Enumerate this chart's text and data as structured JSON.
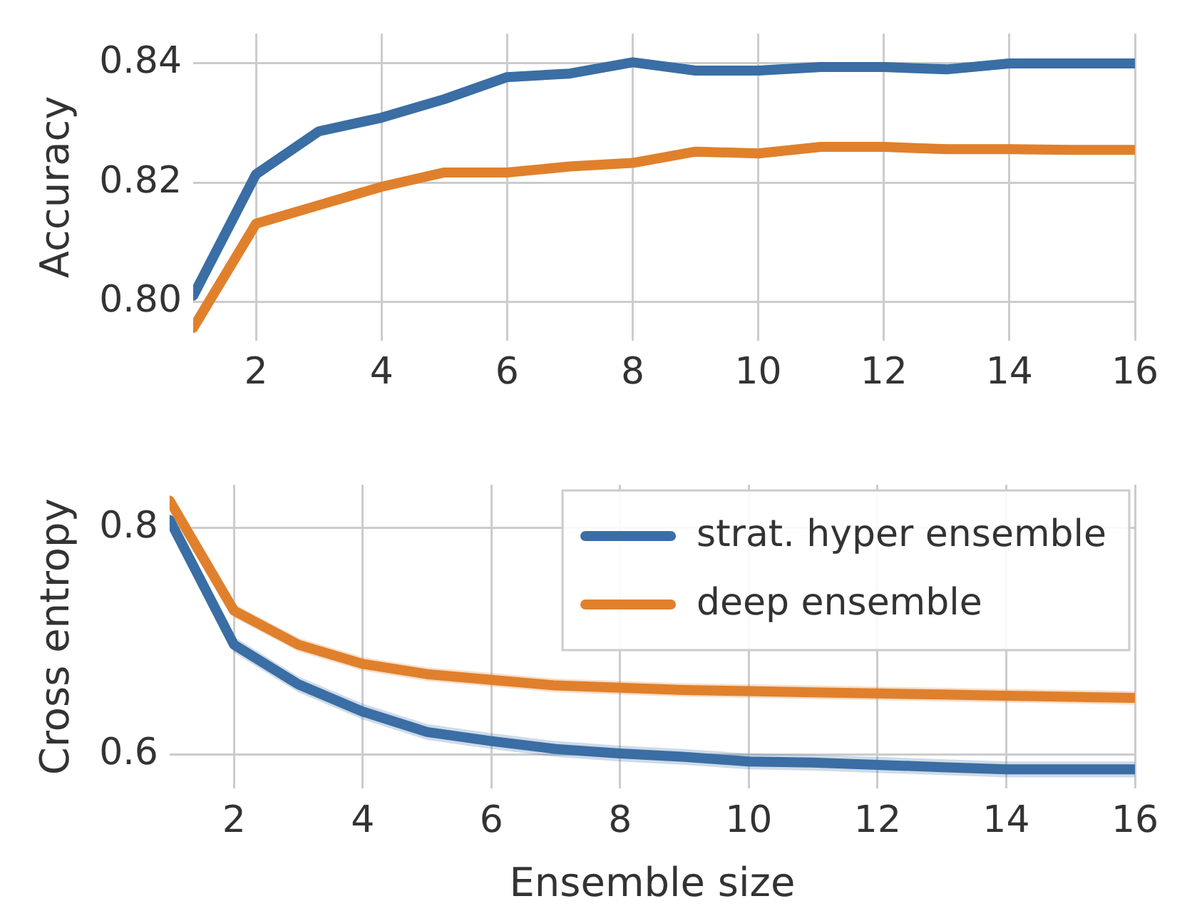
{
  "chart_data": [
    {
      "type": "line",
      "ylabel": "Accuracy",
      "x": [
        1,
        2,
        3,
        4,
        5,
        6,
        7,
        8,
        9,
        10,
        11,
        12,
        13,
        14,
        15,
        16
      ],
      "xlim": [
        1,
        16
      ],
      "xticks": [
        2,
        4,
        6,
        8,
        10,
        12,
        14,
        16
      ],
      "ylim": [
        0.7935,
        0.845
      ],
      "yticks": [
        {
          "value": 0.8,
          "label": "0.80"
        },
        {
          "value": 0.82,
          "label": "0.82"
        },
        {
          "value": 0.84,
          "label": "0.84"
        }
      ],
      "grid": true,
      "legend": false,
      "series": [
        {
          "color": "#3a6ea5",
          "values": [
            0.801,
            0.8214,
            0.8286,
            0.8309,
            0.834,
            0.8377,
            0.8383,
            0.8402,
            0.8388,
            0.8388,
            0.8394,
            0.8394,
            0.839,
            0.84,
            0.84,
            0.84
          ],
          "lower": [
            0.8,
            0.8206,
            0.8278,
            0.8301,
            0.8332,
            0.8369,
            0.8375,
            0.8394,
            0.838,
            0.838,
            0.8386,
            0.8386,
            0.8382,
            0.8392,
            0.8392,
            0.8392
          ],
          "upper": [
            0.802,
            0.8222,
            0.8294,
            0.8317,
            0.8348,
            0.8385,
            0.8391,
            0.841,
            0.8396,
            0.8396,
            0.8402,
            0.8402,
            0.8398,
            0.8408,
            0.8408,
            0.8408
          ]
        },
        {
          "color": "#e1812c",
          "values": [
            0.7956,
            0.8131,
            0.8162,
            0.8193,
            0.8217,
            0.8217,
            0.8227,
            0.8233,
            0.8252,
            0.8249,
            0.826,
            0.826,
            0.8256,
            0.8256,
            0.8255,
            0.8255
          ],
          "lower": [
            0.7946,
            0.8123,
            0.8154,
            0.8185,
            0.8209,
            0.8209,
            0.8219,
            0.8225,
            0.8244,
            0.8241,
            0.8252,
            0.8252,
            0.8248,
            0.8248,
            0.8247,
            0.8247
          ],
          "upper": [
            0.7966,
            0.8139,
            0.817,
            0.8201,
            0.8225,
            0.8225,
            0.8235,
            0.8241,
            0.826,
            0.8257,
            0.8268,
            0.8268,
            0.8264,
            0.8264,
            0.8263,
            0.8263
          ]
        }
      ]
    },
    {
      "type": "line",
      "xlabel": "Ensemble size",
      "ylabel": "Cross entropy",
      "x": [
        1,
        2,
        3,
        4,
        5,
        6,
        7,
        8,
        9,
        10,
        11,
        12,
        13,
        14,
        15,
        16
      ],
      "xlim": [
        1,
        16
      ],
      "xticks": [
        2,
        4,
        6,
        8,
        10,
        12,
        14,
        16
      ],
      "ylim": [
        0.57,
        0.838
      ],
      "yticks": [
        0.6,
        0.8
      ],
      "grid": true,
      "legend": "top right",
      "series": [
        {
          "name": "strat. hyper ensemble",
          "color": "#3a6ea5",
          "values": [
            0.807,
            0.697,
            0.662,
            0.638,
            0.62,
            0.612,
            0.605,
            0.601,
            0.598,
            0.594,
            0.593,
            0.591,
            0.589,
            0.587,
            0.587,
            0.587
          ],
          "lower": [
            0.802,
            0.69,
            0.655,
            0.631,
            0.613,
            0.605,
            0.598,
            0.594,
            0.591,
            0.587,
            0.586,
            0.584,
            0.582,
            0.58,
            0.58,
            0.58
          ],
          "upper": [
            0.812,
            0.704,
            0.669,
            0.645,
            0.627,
            0.619,
            0.612,
            0.608,
            0.605,
            0.601,
            0.6,
            0.598,
            0.596,
            0.594,
            0.594,
            0.594
          ]
        },
        {
          "name": "deep ensemble",
          "color": "#e1812c",
          "values": [
            0.824,
            0.727,
            0.697,
            0.68,
            0.671,
            0.666,
            0.661,
            0.659,
            0.657,
            0.656,
            0.655,
            0.654,
            0.653,
            0.652,
            0.651,
            0.65
          ],
          "lower": [
            0.819,
            0.721,
            0.691,
            0.674,
            0.665,
            0.66,
            0.655,
            0.653,
            0.651,
            0.65,
            0.649,
            0.648,
            0.647,
            0.646,
            0.645,
            0.644
          ],
          "upper": [
            0.829,
            0.733,
            0.703,
            0.686,
            0.677,
            0.672,
            0.667,
            0.665,
            0.663,
            0.662,
            0.661,
            0.66,
            0.659,
            0.658,
            0.657,
            0.656
          ]
        }
      ]
    }
  ]
}
